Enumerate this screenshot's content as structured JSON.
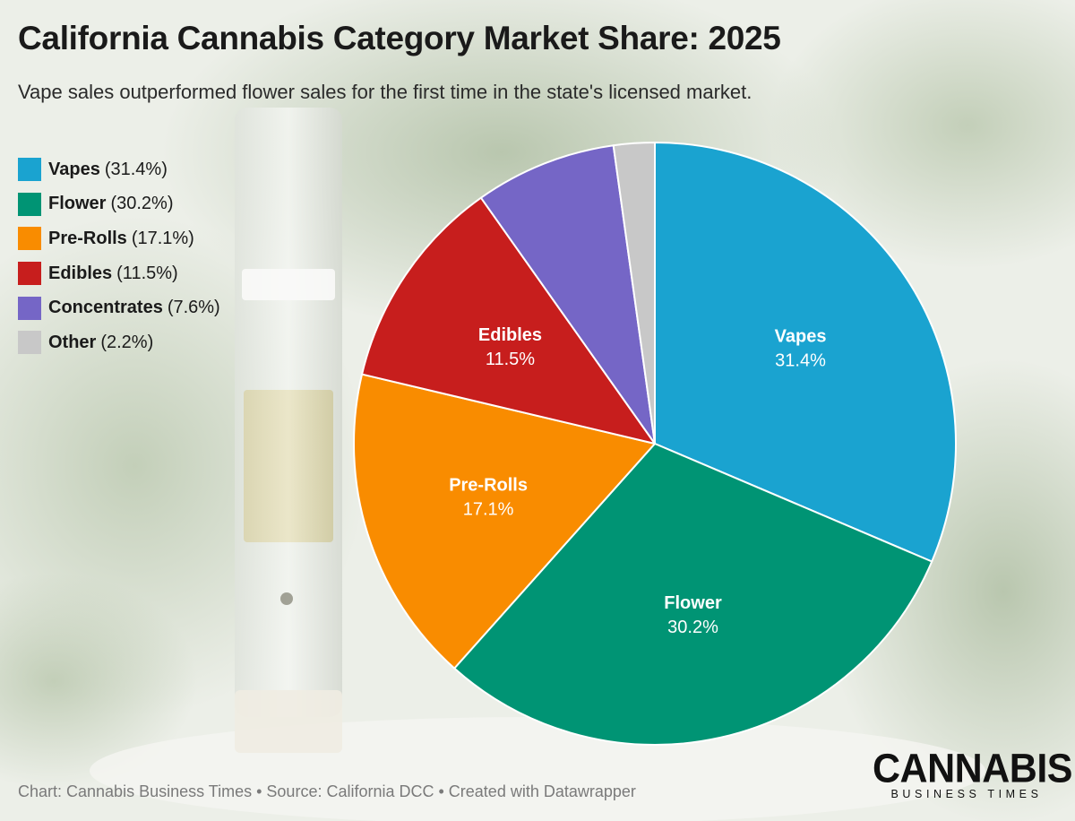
{
  "header": {
    "title": "California Cannabis Category Market Share: 2025",
    "subtitle": "Vape sales outperformed flower sales for the first time in the state's licensed market."
  },
  "chart_data": {
    "type": "pie",
    "title": "California Cannabis Category Market Share: 2025",
    "subtitle": "Vape sales outperformed flower sales for the first time in the state's licensed market.",
    "legend_position": "left",
    "slices": [
      {
        "name": "Vapes",
        "value": 31.4,
        "label": "31.4%",
        "color": "#1aa3d0",
        "show_label": true
      },
      {
        "name": "Flower",
        "value": 30.2,
        "label": "30.2%",
        "color": "#009474",
        "show_label": true
      },
      {
        "name": "Pre-Rolls",
        "value": 17.1,
        "label": "17.1%",
        "color": "#f98c00",
        "show_label": true
      },
      {
        "name": "Edibles",
        "value": 11.5,
        "label": "11.5%",
        "color": "#c71e1d",
        "show_label": true
      },
      {
        "name": "Concentrates",
        "value": 7.6,
        "label": "7.6%",
        "color": "#7566c6",
        "show_label": false
      },
      {
        "name": "Other",
        "value": 2.2,
        "label": "2.2%",
        "color": "#c8c8c8",
        "show_label": false
      }
    ]
  },
  "legend": [
    {
      "name": "Vapes",
      "pct": "(31.4%)",
      "color": "#1aa3d0"
    },
    {
      "name": "Flower",
      "pct": "(30.2%)",
      "color": "#009474"
    },
    {
      "name": "Pre-Rolls",
      "pct": "(17.1%)",
      "color": "#f98c00"
    },
    {
      "name": "Edibles",
      "pct": "(11.5%)",
      "color": "#c71e1d"
    },
    {
      "name": "Concentrates",
      "pct": "(7.6%)",
      "color": "#7566c6"
    },
    {
      "name": "Other",
      "pct": "(2.2%)",
      "color": "#c8c8c8"
    }
  ],
  "footer": {
    "text": "Chart: Cannabis Business Times • Source: California DCC • Created with Datawrapper"
  },
  "logo": {
    "main": "CANNABIS",
    "sub": "BUSINESS TIMES"
  }
}
